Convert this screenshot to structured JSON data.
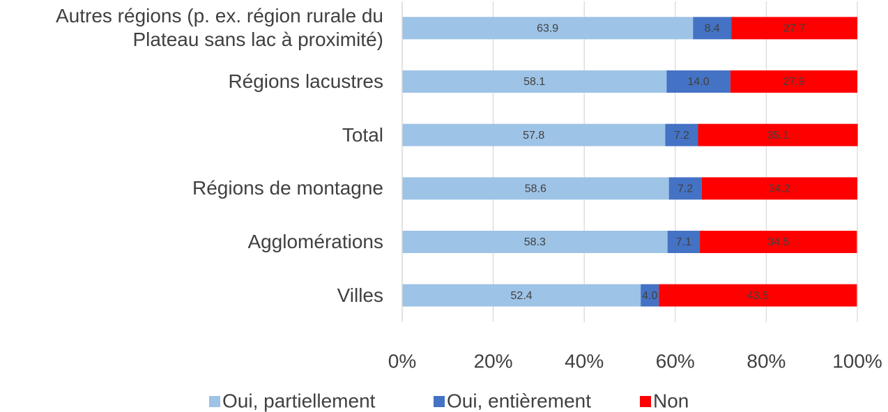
{
  "chart_data": {
    "type": "stacked-barh",
    "categories": [
      "Autres régions (p. ex. région rurale du\nPlateau sans lac à proximité)",
      "Régions lacustres",
      "Total",
      "Régions de montagne",
      "Agglomérations",
      "Villes"
    ],
    "series": [
      {
        "name": "Oui, partiellement",
        "color": "#9dc3e6",
        "values": [
          63.9,
          58.1,
          57.8,
          58.6,
          58.3,
          52.4
        ],
        "value_labels": [
          "63.9",
          "58.1",
          "57.8",
          "58.6",
          "58.3",
          "52.4"
        ]
      },
      {
        "name": "Oui, entièrement",
        "color": "#4472c4",
        "values": [
          8.4,
          14.0,
          7.2,
          7.2,
          7.1,
          4.0
        ],
        "value_labels": [
          "8.4",
          "14.0",
          "7.2",
          "7.2",
          "7.1",
          "4.0"
        ]
      },
      {
        "name": "Non",
        "color": "#ff0000",
        "values": [
          27.7,
          27.9,
          35.1,
          34.2,
          34.5,
          43.5
        ],
        "value_labels": [
          "27.7",
          "27.9",
          "35.1",
          "34.2",
          "34.5",
          "43.5"
        ]
      }
    ],
    "xlim": [
      0,
      100
    ],
    "xticks": [
      {
        "value": 0,
        "label": "0%"
      },
      {
        "value": 20,
        "label": "20%"
      },
      {
        "value": 40,
        "label": "40%"
      },
      {
        "value": 60,
        "label": "60%"
      },
      {
        "value": 80,
        "label": "80%"
      },
      {
        "value": 100,
        "label": "100%"
      }
    ],
    "grid": true,
    "legend": "bottom"
  }
}
